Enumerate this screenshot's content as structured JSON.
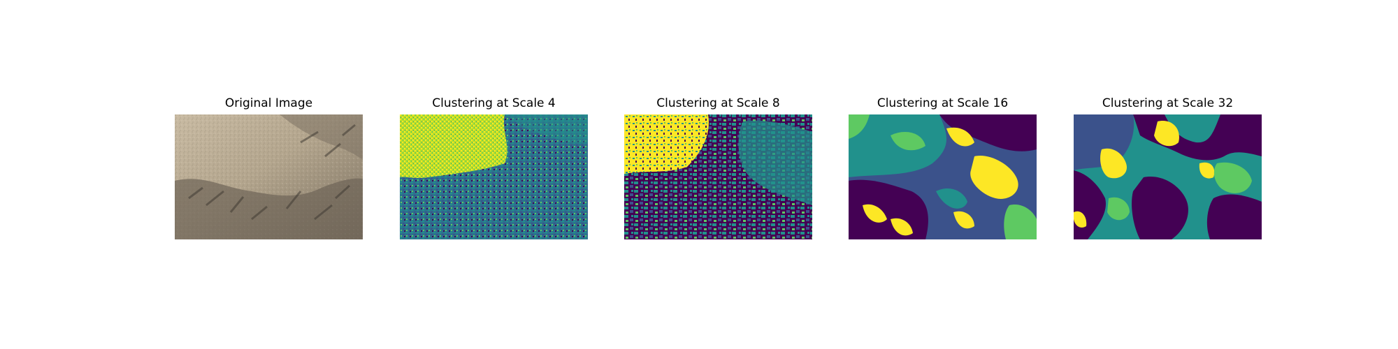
{
  "figure": {
    "panels": [
      {
        "title": "Original Image",
        "image": "aerial photo of dry grassland with shrubs and shadows"
      },
      {
        "title": "Clustering at Scale 4",
        "image": "viridis cluster map, fine-grained"
      },
      {
        "title": "Clustering at Scale 8",
        "image": "viridis cluster map, medium-grained"
      },
      {
        "title": "Clustering at Scale 16",
        "image": "viridis cluster map, coarse"
      },
      {
        "title": "Clustering at Scale 32",
        "image": "viridis cluster map, very coarse"
      }
    ],
    "colormap": [
      "#440154",
      "#3b528b",
      "#21918c",
      "#5ec962",
      "#fde725"
    ]
  }
}
